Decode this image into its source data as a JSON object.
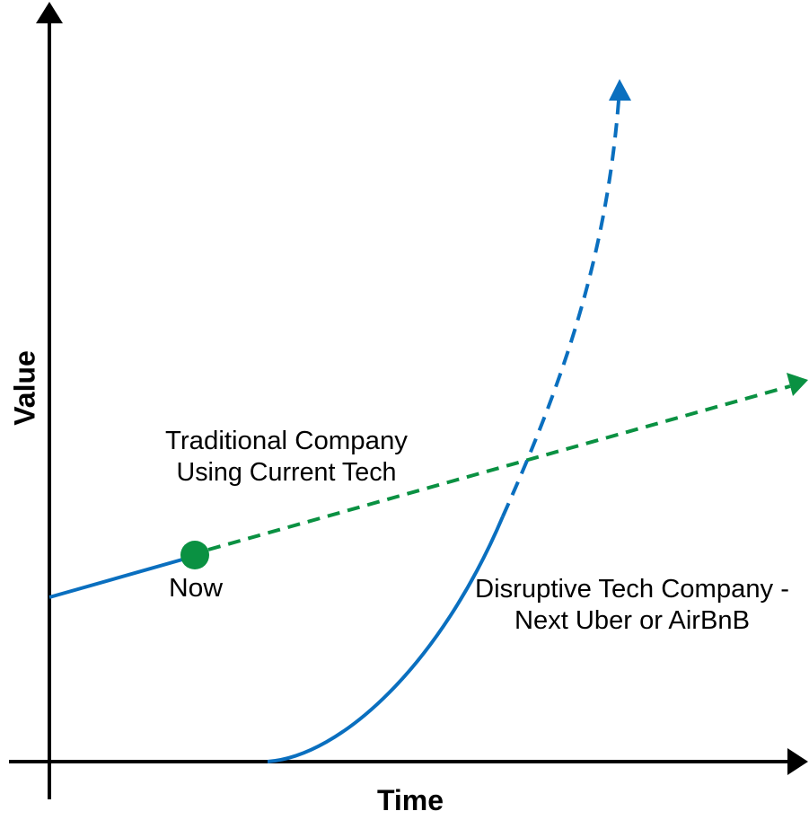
{
  "axes": {
    "y_label": "Value",
    "x_label": "Time"
  },
  "annotations": {
    "traditional": [
      "Traditional Company",
      "Using Current Tech"
    ],
    "now": "Now",
    "disruptive": [
      "Disruptive Tech Company -",
      "Next Uber or AirBnB"
    ]
  }
}
